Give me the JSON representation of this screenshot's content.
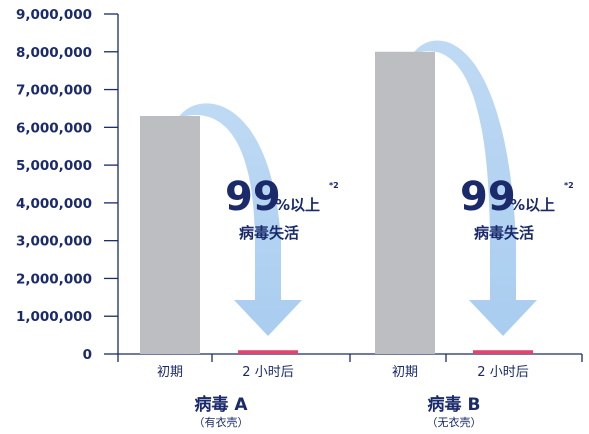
{
  "chart_data": {
    "type": "bar",
    "ylim": [
      0,
      9000000
    ],
    "yticks": [
      0,
      1000000,
      2000000,
      3000000,
      4000000,
      5000000,
      6000000,
      7000000,
      8000000,
      9000000
    ],
    "ytick_labels": [
      "0",
      "1,000,000",
      "2,000,000",
      "3,000,000",
      "4,000,000",
      "5,000,000",
      "6,000,000",
      "7,000,000",
      "8,000,000",
      "9,000,000"
    ],
    "groups": [
      {
        "label": "病毒 A",
        "sublabel": "（有衣壳）",
        "bars": [
          {
            "category": "初期",
            "value": 6300000,
            "color": "#bcbec1"
          },
          {
            "category": "2 小时后",
            "value": 100000,
            "color": "#e0466d"
          }
        ],
        "annotation": {
          "big": "99",
          "pct": "%以上",
          "sup": "*2",
          "line2": "病毒失活"
        }
      },
      {
        "label": "病毒 B",
        "sublabel": "（无衣壳）",
        "bars": [
          {
            "category": "初期",
            "value": 8000000,
            "color": "#bcbec1"
          },
          {
            "category": "2 小时后",
            "value": 100000,
            "color": "#e0466d"
          }
        ],
        "annotation": {
          "big": "99",
          "pct": "%以上",
          "sup": "*2",
          "line2": "病毒失活"
        }
      }
    ],
    "axis_color": "#1a2a6b",
    "arrow_color": "#a9cdf0"
  }
}
